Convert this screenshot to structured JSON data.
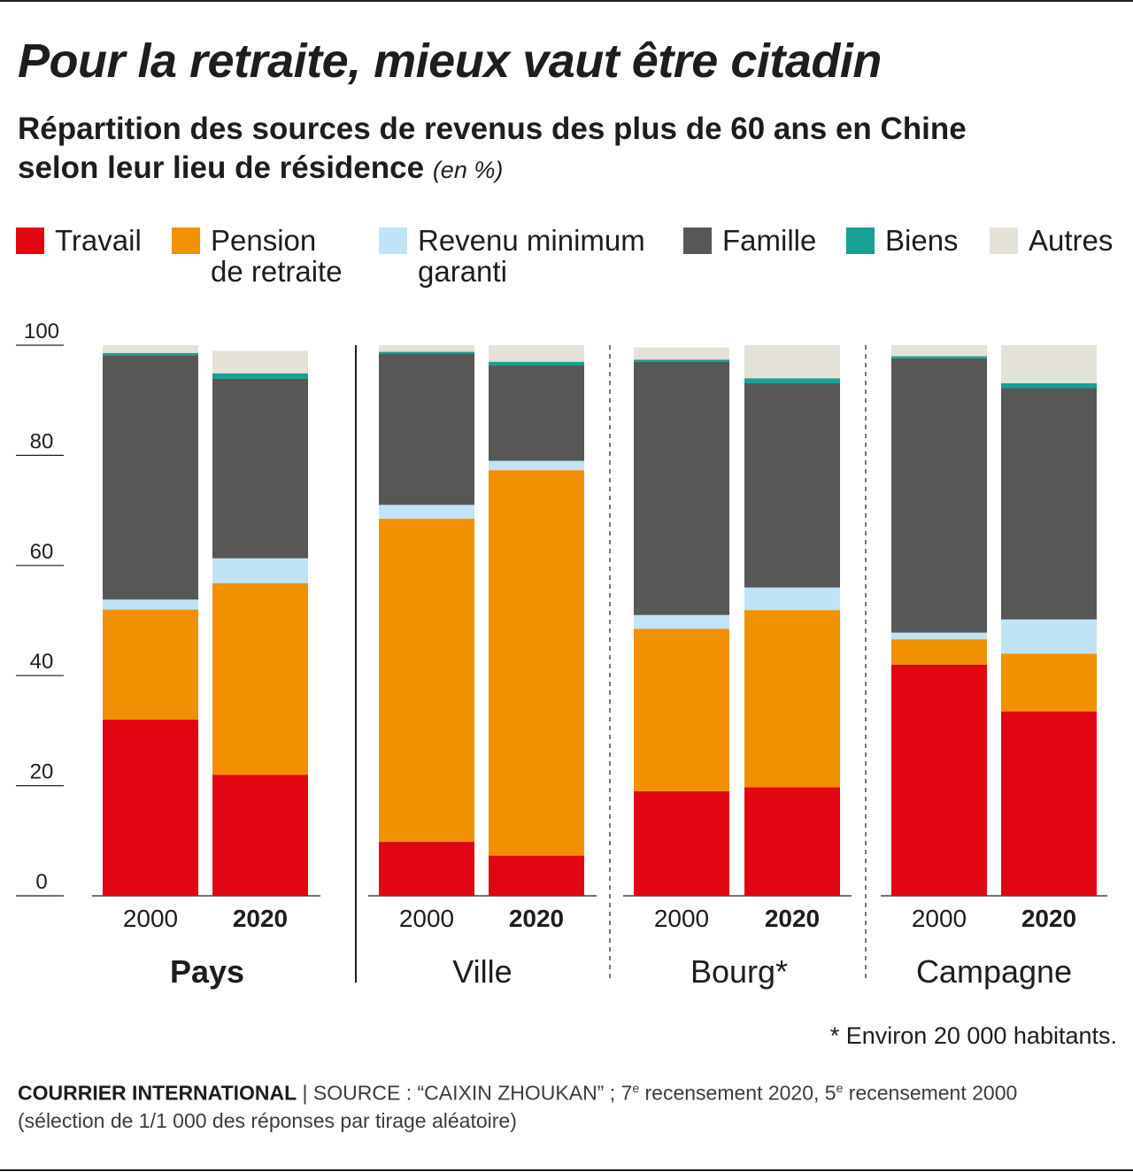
{
  "title": "Pour la retraite, mieux vaut être citadin",
  "subtitle_line1": "Répartition des sources de revenus des plus de 60 ans en Chine",
  "subtitle_line2": "selon leur lieu de résidence",
  "subtitle_unit": "(en %)",
  "legend": [
    {
      "label_line1": "Travail",
      "label_line2": "",
      "color": "#e20613"
    },
    {
      "label_line1": "Pension",
      "label_line2": "de retraite",
      "color": "#f29100"
    },
    {
      "label_line1": "Revenu minimum",
      "label_line2": "garanti",
      "color": "#bfe4f8"
    },
    {
      "label_line1": "Famille",
      "label_line2": "",
      "color": "#575756"
    },
    {
      "label_line1": "Biens",
      "label_line2": "",
      "color": "#16a096"
    },
    {
      "label_line1": "Autres",
      "label_line2": "",
      "color": "#e4e1d6"
    }
  ],
  "chart_data": {
    "type": "bar",
    "stacked": true,
    "ylim": [
      0,
      100
    ],
    "yticks": [
      "100",
      "80",
      "60",
      "40",
      "20",
      "0"
    ],
    "groups": [
      {
        "name": "Pays",
        "bold": true,
        "divider": "none"
      },
      {
        "name": "Ville",
        "bold": false,
        "divider": "solid"
      },
      {
        "name": "Bourg*",
        "bold": false,
        "divider": "dashed"
      },
      {
        "name": "Campagne",
        "bold": false,
        "divider": "dashed"
      }
    ],
    "years": [
      "2000",
      "2020"
    ],
    "series": [
      {
        "name": "Travail",
        "color": "#e20613",
        "values": [
          32.0,
          22.0,
          9.8,
          7.3,
          19.0,
          19.7,
          42.0,
          33.5
        ]
      },
      {
        "name": "Pension de retraite",
        "color": "#f29100",
        "values": [
          20.0,
          34.8,
          58.7,
          70.0,
          29.5,
          32.2,
          4.6,
          10.5
        ]
      },
      {
        "name": "Revenu minimum garanti",
        "color": "#bfe4f8",
        "values": [
          1.8,
          4.5,
          2.5,
          1.7,
          2.5,
          4.1,
          1.2,
          6.2
        ]
      },
      {
        "name": "Famille",
        "color": "#575756",
        "values": [
          44.4,
          32.6,
          27.5,
          17.3,
          46.0,
          37.1,
          49.8,
          42.0
        ]
      },
      {
        "name": "Biens",
        "color": "#16a096",
        "values": [
          0.4,
          1.0,
          0.3,
          0.7,
          0.4,
          0.9,
          0.4,
          0.9
        ]
      },
      {
        "name": "Autres",
        "color": "#e4e1d6",
        "values": [
          1.4,
          4.1,
          1.2,
          3.0,
          2.2,
          6.0,
          2.0,
          6.9
        ]
      }
    ]
  },
  "footnote": "* Environ 20 000 habitants.",
  "source": {
    "brand": "COURRIER INTERNATIONAL",
    "text_a": " | SOURCE : “CAIXIN ZHOUKAN” ; 7",
    "sup_a": "e",
    "text_b": " recensement 2020, 5",
    "sup_b": "e",
    "text_c": " recensement 2000",
    "line2": "(sélection de 1/1 000 des réponses par tirage aléatoire)"
  }
}
